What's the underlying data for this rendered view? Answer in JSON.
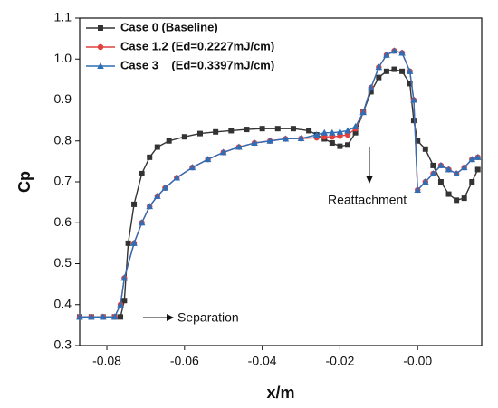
{
  "chart_data": {
    "type": "line",
    "xlabel": "x/m",
    "ylabel": "Cp",
    "xlim": [
      -0.087,
      0.0165
    ],
    "ylim": [
      0.3,
      1.1
    ],
    "xticks": [
      -0.08,
      -0.06,
      -0.04,
      -0.02,
      {
        "value": 0,
        "label": "-0.00"
      }
    ],
    "yticks": [
      0.3,
      0.4,
      0.5,
      0.6,
      0.7,
      0.8,
      0.9,
      {
        "value": 1.0,
        "label": "1.0"
      },
      1.1
    ],
    "legend": "upper left",
    "annotations": [
      "Separation",
      "Reattachment"
    ],
    "series": [
      {
        "name": "Case 0 (Baseline)",
        "color": "#333333",
        "marker": "square",
        "x": [
          -0.087,
          -0.084,
          -0.081,
          -0.078,
          -0.0765,
          -0.0755,
          -0.0745,
          -0.073,
          -0.071,
          -0.069,
          -0.067,
          -0.064,
          -0.06,
          -0.056,
          -0.052,
          -0.048,
          -0.044,
          -0.04,
          -0.036,
          -0.032,
          -0.028,
          -0.026,
          -0.024,
          -0.022,
          -0.02,
          -0.018,
          -0.016,
          -0.014,
          -0.012,
          -0.01,
          -0.008,
          -0.006,
          -0.004,
          -0.002,
          -0.001,
          0,
          0.002,
          0.004,
          0.006,
          0.008,
          0.01,
          0.012,
          0.014,
          0.0155
        ],
        "values": [
          0.37,
          0.37,
          0.37,
          0.37,
          0.37,
          0.41,
          0.55,
          0.645,
          0.72,
          0.76,
          0.785,
          0.8,
          0.81,
          0.818,
          0.822,
          0.825,
          0.828,
          0.83,
          0.83,
          0.83,
          0.825,
          0.815,
          0.805,
          0.795,
          0.787,
          0.79,
          0.82,
          0.87,
          0.92,
          0.955,
          0.97,
          0.975,
          0.97,
          0.94,
          0.85,
          0.8,
          0.78,
          0.74,
          0.7,
          0.67,
          0.655,
          0.66,
          0.7,
          0.73
        ]
      },
      {
        "name": "Case 1.2 (Ed=0.2227mJ/cm)",
        "color": "#e0413f",
        "marker": "circle",
        "x": [
          -0.087,
          -0.084,
          -0.081,
          -0.078,
          -0.0765,
          -0.0755,
          -0.073,
          -0.071,
          -0.069,
          -0.067,
          -0.065,
          -0.062,
          -0.058,
          -0.054,
          -0.05,
          -0.046,
          -0.042,
          -0.038,
          -0.034,
          -0.03,
          -0.026,
          -0.024,
          -0.022,
          -0.02,
          -0.018,
          -0.016,
          -0.014,
          -0.012,
          -0.01,
          -0.008,
          -0.006,
          -0.004,
          -0.002,
          -0.001,
          0,
          0.002,
          0.004,
          0.006,
          0.008,
          0.01,
          0.012,
          0.014,
          0.0155
        ],
        "values": [
          0.37,
          0.37,
          0.37,
          0.37,
          0.4,
          0.465,
          0.55,
          0.6,
          0.64,
          0.665,
          0.685,
          0.71,
          0.735,
          0.755,
          0.772,
          0.785,
          0.795,
          0.8,
          0.805,
          0.806,
          0.808,
          0.81,
          0.81,
          0.812,
          0.815,
          0.83,
          0.87,
          0.93,
          0.98,
          1.01,
          1.02,
          1.015,
          0.97,
          0.9,
          0.68,
          0.7,
          0.72,
          0.74,
          0.73,
          0.72,
          0.735,
          0.755,
          0.76
        ]
      },
      {
        "name": "Case 3    (Ed=0.3397mJ/cm)",
        "color": "#2f6db5",
        "marker": "triangle",
        "x": [
          -0.087,
          -0.084,
          -0.081,
          -0.078,
          -0.0765,
          -0.0755,
          -0.073,
          -0.071,
          -0.069,
          -0.067,
          -0.065,
          -0.062,
          -0.058,
          -0.054,
          -0.05,
          -0.046,
          -0.042,
          -0.038,
          -0.034,
          -0.03,
          -0.026,
          -0.024,
          -0.022,
          -0.02,
          -0.018,
          -0.016,
          -0.014,
          -0.012,
          -0.01,
          -0.008,
          -0.006,
          -0.004,
          -0.002,
          -0.001,
          0,
          0.002,
          0.004,
          0.006,
          0.008,
          0.01,
          0.012,
          0.014,
          0.0155
        ],
        "values": [
          0.37,
          0.37,
          0.37,
          0.37,
          0.4,
          0.465,
          0.55,
          0.6,
          0.64,
          0.665,
          0.685,
          0.71,
          0.735,
          0.755,
          0.772,
          0.785,
          0.795,
          0.8,
          0.805,
          0.806,
          0.815,
          0.82,
          0.82,
          0.822,
          0.825,
          0.835,
          0.87,
          0.93,
          0.98,
          1.01,
          1.02,
          1.015,
          0.97,
          0.9,
          0.68,
          0.7,
          0.72,
          0.74,
          0.73,
          0.72,
          0.735,
          0.755,
          0.76
        ]
      }
    ]
  }
}
